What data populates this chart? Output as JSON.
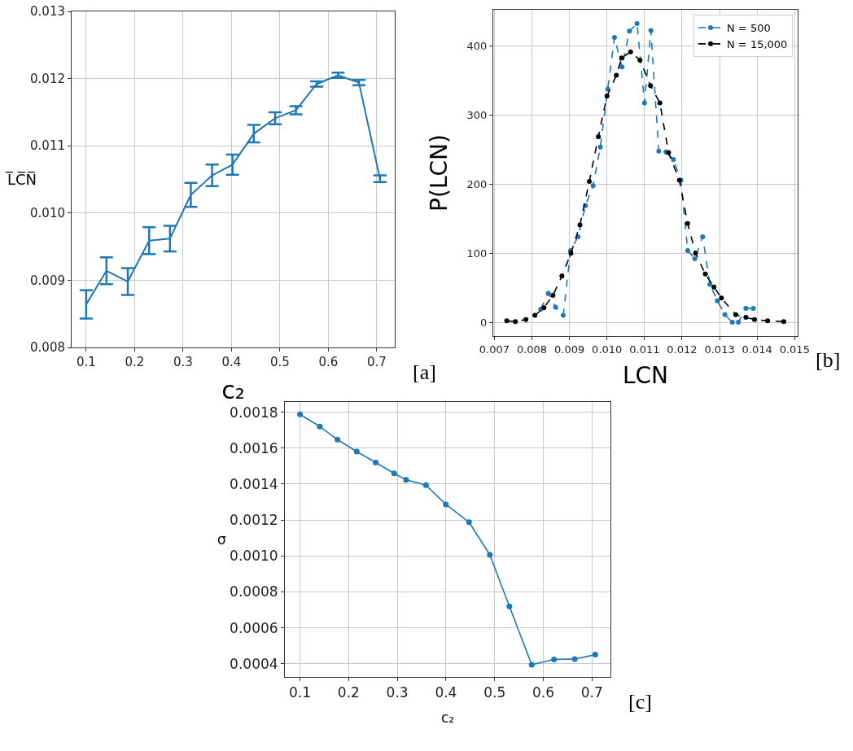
{
  "chart_data": [
    {
      "type": "line",
      "xlabel": "c₂",
      "ylabel": "L̅C̅N̅",
      "annotations": [
        "[a]"
      ],
      "x": [
        0.1,
        0.142,
        0.186,
        0.23,
        0.273,
        0.316,
        0.36,
        0.402,
        0.446,
        0.49,
        0.533,
        0.576,
        0.62,
        0.663,
        0.7065
      ],
      "series": [
        {
          "color": "#1f77b4",
          "values": [
            0.00864,
            0.00914,
            0.00898,
            0.00959,
            0.00962,
            0.01027,
            0.01056,
            0.01072,
            0.01118,
            0.01141,
            0.01153,
            0.01192,
            0.01205,
            0.01194,
            0.01051
          ],
          "errors": [
            0.00021,
            0.0002,
            0.0002,
            0.0002,
            0.00019,
            0.00018,
            0.00016,
            0.00015,
            0.00013,
            9e-05,
            6e-05,
            4e-05,
            4e-05,
            4e-05,
            5e-05
          ]
        }
      ],
      "xlim": [
        0.07,
        0.737
      ],
      "xticks": [
        0.1,
        0.2,
        0.3,
        0.4,
        0.5,
        0.6,
        0.7
      ],
      "ylim": [
        0.008,
        0.013
      ],
      "yticks": [
        0.008,
        0.009,
        {
          "value": 0.01,
          "label": "0.010"
        },
        0.011,
        0.012,
        0.013
      ],
      "grid": true,
      "marker": "none",
      "line_style": "solid"
    },
    {
      "type": "line",
      "xlabel": "LCN",
      "ylabel": "P(LCN)",
      "annotations": [
        "[b]"
      ],
      "legend": "top right",
      "marker": "circle",
      "line_style": "dashed",
      "grid": true,
      "series": [
        {
          "name": "N = 500",
          "color": "#1f77b4",
          "x": [
            0.008235,
            0.008437,
            0.00863,
            0.008834,
            0.00903,
            0.00923,
            0.009426,
            0.00963,
            0.009823,
            0.01002,
            0.0102,
            0.0104,
            0.0106,
            0.0108,
            0.011,
            0.01117,
            0.01138,
            0.01157,
            0.01177,
            0.01197,
            0.01215,
            0.01234,
            0.01255,
            0.01274,
            0.01294,
            0.01314,
            0.01334,
            0.0135,
            0.0137,
            0.0139
          ],
          "values": [
            19,
            42,
            22,
            10,
            104,
            124,
            169,
            198,
            254,
            338,
            413,
            370,
            422,
            433,
            318,
            423,
            248,
            247,
            236,
            206,
            104,
            92,
            124,
            55,
            31,
            11,
            0,
            0,
            20,
            20
          ]
        },
        {
          "name": "N = 15,000",
          "color": "#000000",
          "x": [
            0.00733,
            0.00756,
            0.00784,
            0.00808,
            0.00832,
            0.00856,
            0.0088,
            0.00904,
            0.00928,
            0.00953,
            0.00977,
            0.01,
            0.01025,
            0.01039,
            0.01063,
            0.01088,
            0.01116,
            0.01141,
            0.01164,
            0.01193,
            0.01215,
            0.01236,
            0.01262,
            0.01285,
            0.01305,
            0.01343,
            0.0137,
            0.01393,
            0.01428,
            0.01471
          ],
          "values": [
            2,
            1,
            4,
            10,
            21,
            39,
            67,
            100,
            141,
            204,
            269,
            328,
            358,
            383,
            392,
            380,
            343,
            318,
            246,
            206,
            143,
            100,
            70,
            51,
            35,
            11,
            7,
            4,
            2,
            1
          ]
        }
      ],
      "xlim": [
        0.00697,
        0.01508
      ],
      "xticks": [
        0.007,
        0.008,
        0.009,
        {
          "value": 0.01,
          "label": "0.010"
        },
        0.011,
        0.012,
        0.013,
        0.014,
        0.015
      ],
      "ylim": [
        -20,
        453
      ],
      "yticks": [
        0,
        100,
        200,
        300,
        400
      ]
    },
    {
      "type": "line",
      "xlabel": "c₂",
      "ylabel": "σ",
      "annotations": [
        "[c]"
      ],
      "marker": "circle",
      "line_style": "solid",
      "grid": true,
      "x": [
        0.1,
        0.1409,
        0.177,
        0.2166,
        0.2557,
        0.2935,
        0.318,
        0.3589,
        0.3998,
        0.4474,
        0.4901,
        0.5304,
        0.5762,
        0.622,
        0.6647,
        0.7068
      ],
      "series": [
        {
          "color": "#1f77b4",
          "values": [
            0.001788,
            0.00172,
            0.001648,
            0.001581,
            0.00152,
            0.00146,
            0.001424,
            0.001394,
            0.001287,
            0.001188,
            0.001007,
            0.00072,
            0.000395,
            0.000424,
            0.000427,
            0.000451
          ]
        }
      ],
      "xlim": [
        0.069,
        0.738
      ],
      "xticks": [
        0.1,
        0.2,
        0.3,
        0.4,
        0.5,
        0.6,
        0.7
      ],
      "ylim": [
        0.000327,
        0.001857
      ],
      "yticks": [
        {
          "value": 0.0004,
          "label": "0.0004"
        },
        {
          "value": 0.0006,
          "label": "0.0006"
        },
        {
          "value": 0.0008,
          "label": "0.0008"
        },
        {
          "value": 0.001,
          "label": "0.0010"
        },
        {
          "value": 0.0012,
          "label": "0.0012"
        },
        {
          "value": 0.0014,
          "label": "0.0014"
        },
        {
          "value": 0.0016,
          "label": "0.0016"
        },
        {
          "value": 0.0018,
          "label": "0.0018"
        }
      ]
    }
  ]
}
